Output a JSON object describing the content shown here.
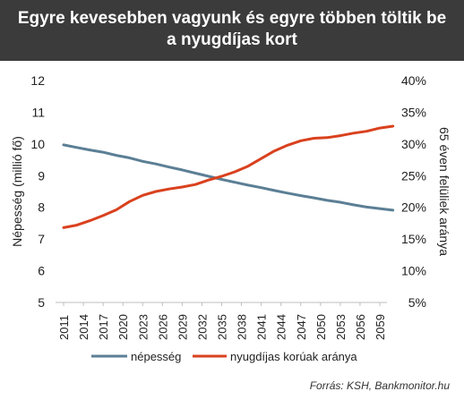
{
  "header": {
    "title_line1": "Egyre kevesebben vagyunk és egyre többen töltik be",
    "title_line2": "a nyugdíjas kort"
  },
  "source": "Forrás: KSH, Bankmonitor.hu",
  "colors": {
    "header_bg": "#3b3b3b",
    "population": "#5b7f95",
    "retirement_share": "#d9411e"
  },
  "chart_data": {
    "type": "line",
    "title": "",
    "ylabel": "Népesség (millió fő)",
    "y2label": "65 éven felüliek aránya",
    "x_ticks": [
      "2011",
      "2014",
      "2017",
      "2020",
      "2023",
      "2026",
      "2029",
      "2032",
      "2035",
      "2038",
      "2041",
      "2044",
      "2047",
      "2050",
      "2053",
      "2056",
      "2059"
    ],
    "ylim": [
      5,
      12
    ],
    "y_ticks": [
      "5",
      "6",
      "7",
      "8",
      "9",
      "10",
      "11",
      "12"
    ],
    "y2lim": [
      5,
      40
    ],
    "y2_ticks": [
      "5%",
      "10%",
      "15%",
      "20%",
      "25%",
      "30%",
      "35%",
      "40%"
    ],
    "grid": false,
    "legend_position": "bottom",
    "series": [
      {
        "name": "népesség",
        "axis": "left",
        "x": [
          2011,
          2013,
          2015,
          2017,
          2019,
          2021,
          2023,
          2025,
          2027,
          2029,
          2031,
          2033,
          2035,
          2037,
          2039,
          2041,
          2043,
          2045,
          2047,
          2049,
          2051,
          2053,
          2055,
          2057,
          2059,
          2061
        ],
        "values": [
          9.97,
          9.89,
          9.81,
          9.74,
          9.64,
          9.56,
          9.45,
          9.37,
          9.27,
          9.18,
          9.08,
          8.98,
          8.88,
          8.79,
          8.7,
          8.62,
          8.53,
          8.45,
          8.37,
          8.3,
          8.22,
          8.16,
          8.08,
          8.01,
          7.96,
          7.91
        ]
      },
      {
        "name": "nyugdíjas korúak aránya",
        "axis": "right",
        "x": [
          2011,
          2013,
          2015,
          2017,
          2019,
          2021,
          2023,
          2025,
          2027,
          2029,
          2031,
          2033,
          2035,
          2037,
          2039,
          2041,
          2043,
          2045,
          2047,
          2049,
          2051,
          2053,
          2055,
          2057,
          2059,
          2061
        ],
        "values": [
          16.8,
          17.2,
          17.9,
          18.7,
          19.6,
          20.9,
          21.9,
          22.5,
          22.9,
          23.2,
          23.6,
          24.3,
          24.9,
          25.6,
          26.5,
          27.7,
          28.9,
          29.8,
          30.5,
          30.9,
          31.0,
          31.3,
          31.7,
          32.0,
          32.5,
          32.8
        ]
      }
    ]
  }
}
